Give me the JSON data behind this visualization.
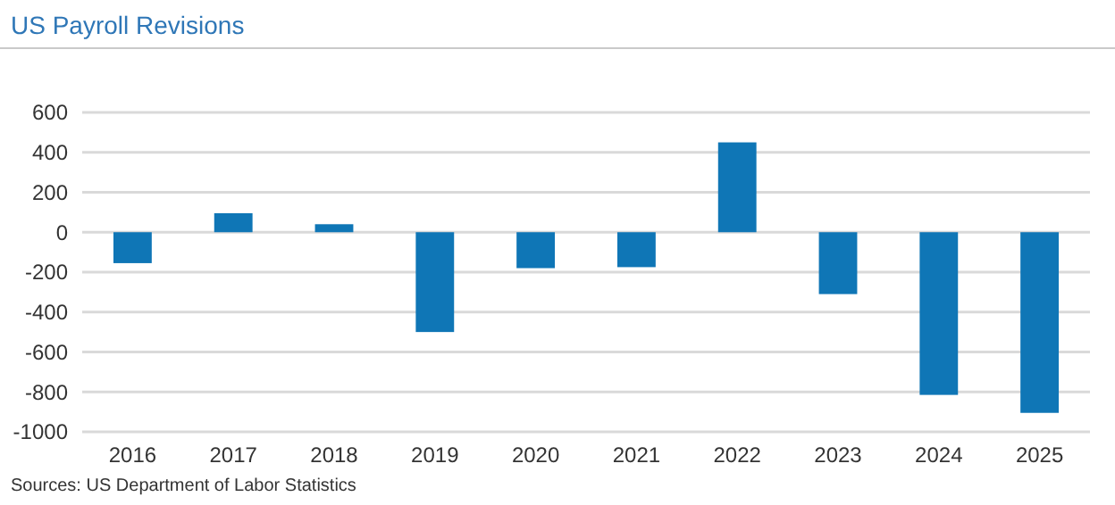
{
  "chart_data": {
    "type": "bar",
    "title": "US Payroll Revisions",
    "categories": [
      "2016",
      "2017",
      "2018",
      "2019",
      "2020",
      "2021",
      "2022",
      "2023",
      "2024",
      "2025"
    ],
    "values": [
      -155,
      95,
      40,
      -500,
      -180,
      -175,
      450,
      -310,
      -815,
      -905
    ],
    "color": "#0f76b6",
    "ylim": [
      -1000,
      600
    ],
    "yticks": [
      -1000,
      -800,
      -600,
      -400,
      -200,
      0,
      200,
      400,
      600
    ],
    "grid": "y",
    "annotations": [
      "Sources: US Department of Labor Statistics"
    ]
  }
}
